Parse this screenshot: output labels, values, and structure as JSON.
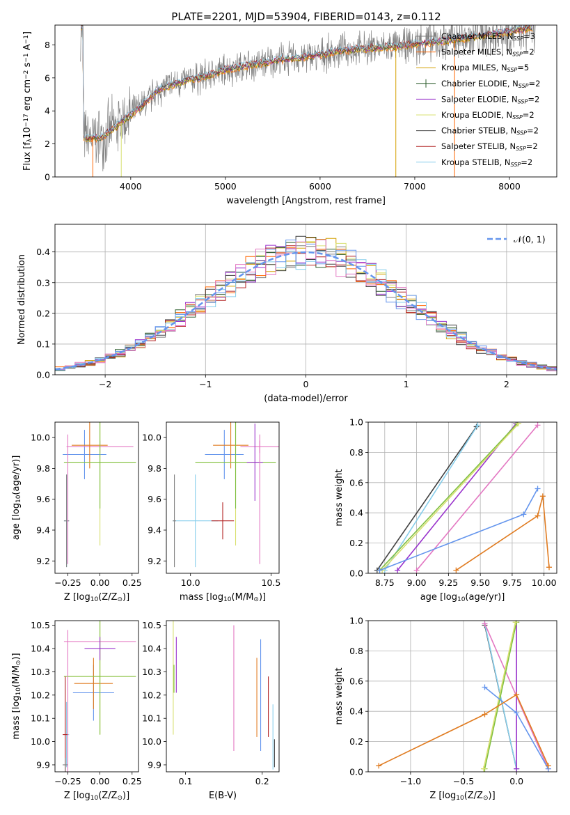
{
  "figure_title": "PLATE=2201, MJD=53904, FIBERID=0143, z=0.112",
  "chart_data": [
    {
      "id": "spectrum",
      "type": "line",
      "xlabel": "wavelength [Angstrom, rest frame]",
      "ylabel": "Flux [f",
      "ylabel_sub": "λ",
      "ylabel_rest": "10",
      "ylabel_exp1": "−17",
      "ylabel_mid": " erg cm",
      "ylabel_exp2": "−2",
      "ylabel_mid2": " s",
      "ylabel_exp3": "−1",
      "ylabel_end": " A",
      "ylabel_exp4": "−1",
      "ylabel_close": "]",
      "xlim": [
        3200,
        8500
      ],
      "ylim": [
        0,
        9.2
      ],
      "xticks": [
        4000,
        5000,
        6000,
        7000,
        8000
      ],
      "yticks": [
        0,
        2,
        4,
        6,
        8
      ],
      "legend_position": "right",
      "data_color": "#808080",
      "model_trend": [
        [
          3500,
          2.3
        ],
        [
          3700,
          2.4
        ],
        [
          3900,
          3.3
        ],
        [
          4100,
          4.2
        ],
        [
          4300,
          5.3
        ],
        [
          4500,
          5.7
        ],
        [
          4800,
          6.1
        ],
        [
          5000,
          6.5
        ],
        [
          5300,
          6.8
        ],
        [
          5600,
          7.1
        ],
        [
          5900,
          7.3
        ],
        [
          6200,
          7.6
        ],
        [
          6500,
          7.8
        ],
        [
          6800,
          7.9
        ],
        [
          7100,
          8.1
        ],
        [
          7400,
          8.3
        ],
        [
          7800,
          8.6
        ],
        [
          8100,
          8.9
        ],
        [
          8300,
          9.1
        ]
      ],
      "legend": [
        {
          "pre": "Chabrier MILES, N",
          "sub": "SSP",
          "post": "=3",
          "color": "#808080"
        },
        {
          "pre": "Salpeter MILES, N",
          "sub": "SSP",
          "post": "=2",
          "color": "#ff6600"
        },
        {
          "pre": "Kroupa MILES, N",
          "sub": "SSP",
          "post": "=5",
          "color": "#d4a000"
        },
        {
          "pre": "Chabrier ELODIE, N",
          "sub": "SSP",
          "post": "=2",
          "color": "#2e5e2e"
        },
        {
          "pre": "Salpeter ELODIE, N",
          "sub": "SSP",
          "post": "=2",
          "color": "#9932cc"
        },
        {
          "pre": "Kroupa ELODIE, N",
          "sub": "SSP",
          "post": "=2",
          "color": "#d8e070"
        },
        {
          "pre": "Chabrier STELIB, N",
          "sub": "SSP",
          "post": "=2",
          "color": "#404040"
        },
        {
          "pre": "Salpeter STELIB, N",
          "sub": "SSP",
          "post": "=2",
          "color": "#b22222"
        },
        {
          "pre": "Kroupa STELIB, N",
          "sub": "SSP",
          "post": "=2",
          "color": "#87ceeb"
        }
      ]
    },
    {
      "id": "residuals",
      "type": "line",
      "xlabel": "(data-model)/error",
      "ylabel": "Normed distribution",
      "xlim": [
        -2.5,
        2.5
      ],
      "ylim": [
        0,
        0.49
      ],
      "xticks": [
        -2,
        -1,
        0,
        1,
        2
      ],
      "yticks": [
        0.0,
        0.1,
        0.2,
        0.3,
        0.4
      ],
      "grid": true,
      "legend_position": "top-right",
      "legend_label": "𝒩(0, 1)",
      "gaussian_color": "#6495ed"
    },
    {
      "id": "age_vs_Z",
      "type": "scatter",
      "xlabel": "Z [log",
      "xlabel_sub": "10",
      "xlabel_end": "(Z/Z",
      "xlabel_sub2": "⊙",
      "xlabel_close": ")]",
      "ylabel": "age  [log",
      "ylabel_sub": "10",
      "ylabel_end": "(age/yr)]",
      "xlim": [
        -0.35,
        0.3
      ],
      "ylim": [
        9.12,
        10.1
      ],
      "xticks": [
        -0.25,
        0.0,
        0.25
      ],
      "yticks": [
        9.2,
        9.4,
        9.6,
        9.8,
        10.0
      ],
      "points": [
        {
          "x": -0.12,
          "y": 9.89,
          "xerr": 0.17,
          "yerr": 0.16,
          "color": "#6495ed"
        },
        {
          "x": 0.0,
          "y": 9.94,
          "xerr": 0.26,
          "yerr": 0.04,
          "color": "#e377c2"
        },
        {
          "x": -0.08,
          "y": 9.95,
          "xerr": 0.14,
          "yerr": 0.15,
          "color": "#e07b20"
        },
        {
          "x": 0.0,
          "y": 9.84,
          "xerr": 0.28,
          "yerr": 0.54,
          "color": "#d8e070"
        },
        {
          "x": 0.0,
          "y": 9.84,
          "xerr": 0.28,
          "yerr": 0.3,
          "color": "#80c040"
        },
        {
          "x": -0.26,
          "y": 9.46,
          "xerr": 0.02,
          "yerr": 0.3,
          "color": "#87ceeb"
        },
        {
          "x": -0.26,
          "y": 9.46,
          "xerr": 0.02,
          "yerr": 0.3,
          "color": "#808080"
        },
        {
          "x": -0.25,
          "y": 9.6,
          "xerr": 0.0,
          "yerr": 0.42,
          "color": "#e377c2"
        }
      ]
    },
    {
      "id": "age_vs_mass",
      "type": "scatter",
      "xlabel": "mass [log",
      "xlabel_sub": "10",
      "xlabel_end": "(M/M",
      "xlabel_sub2": "⊙",
      "xlabel_close": ")]",
      "xlim": [
        9.85,
        10.55
      ],
      "ylim": [
        9.12,
        10.1
      ],
      "xticks": [
        10.0,
        10.5
      ],
      "yticks": [
        9.2,
        9.4,
        9.6,
        9.8,
        10.0
      ],
      "points": [
        {
          "x": 10.21,
          "y": 9.89,
          "xerr": 0.12,
          "yerr": 0.16,
          "color": "#6495ed"
        },
        {
          "x": 10.43,
          "y": 9.94,
          "xerr": 0.12,
          "yerr": 0.04,
          "color": "#e377c2"
        },
        {
          "x": 10.25,
          "y": 9.95,
          "xerr": 0.11,
          "yerr": 0.15,
          "color": "#e07b20"
        },
        {
          "x": 10.28,
          "y": 9.84,
          "xerr": 0.25,
          "yerr": 0.54,
          "color": "#d8e070"
        },
        {
          "x": 10.28,
          "y": 9.84,
          "xerr": 0.25,
          "yerr": 0.3,
          "color": "#80c040"
        },
        {
          "x": 10.4,
          "y": 9.84,
          "xerr": 0.05,
          "yerr": 0.25,
          "color": "#9932cc"
        },
        {
          "x": 10.03,
          "y": 9.46,
          "xerr": 0.14,
          "yerr": 0.3,
          "color": "#87ceeb"
        },
        {
          "x": 10.2,
          "y": 9.46,
          "xerr": 0.07,
          "yerr": 0.12,
          "color": "#b22222"
        },
        {
          "x": 9.9,
          "y": 9.46,
          "xerr": 0.01,
          "yerr": 0.3,
          "color": "#808080"
        },
        {
          "x": 10.43,
          "y": 9.6,
          "xerr": 0.0,
          "yerr": 0.42,
          "color": "#e377c2"
        }
      ]
    },
    {
      "id": "weight_vs_age",
      "type": "line",
      "xlabel": "age  [log",
      "xlabel_sub": "10",
      "xlabel_end": "(age/yr)]",
      "ylabel": "mass weight",
      "xlim": [
        8.62,
        10.1
      ],
      "ylim": [
        0,
        1
      ],
      "xticks": [
        8.75,
        9.0,
        9.25,
        9.5,
        9.75,
        10.0
      ],
      "yticks": [
        0.0,
        0.2,
        0.4,
        0.6,
        0.8,
        1.0
      ],
      "grid": true,
      "series": [
        {
          "color": "#404040",
          "points": [
            [
              8.69,
              0.02
            ],
            [
              9.47,
              0.97
            ]
          ]
        },
        {
          "color": "#87ceeb",
          "points": [
            [
              8.75,
              0.02
            ],
            [
              9.48,
              0.98
            ]
          ]
        },
        {
          "color": "#9932cc",
          "points": [
            [
              8.85,
              0.02
            ],
            [
              9.78,
              0.99
            ]
          ]
        },
        {
          "color": "#80c040",
          "points": [
            [
              8.71,
              0.02
            ],
            [
              9.79,
              0.99
            ]
          ]
        },
        {
          "color": "#d8e070",
          "points": [
            [
              8.73,
              0.02
            ],
            [
              9.8,
              0.99
            ]
          ]
        },
        {
          "color": "#e377c2",
          "points": [
            [
              9.0,
              0.02
            ],
            [
              9.95,
              0.98
            ]
          ]
        },
        {
          "color": "#6495ed",
          "points": [
            [
              8.71,
              0.02
            ],
            [
              9.84,
              0.39
            ],
            [
              9.95,
              0.56
            ]
          ]
        },
        {
          "color": "#e07b20",
          "points": [
            [
              9.31,
              0.02
            ],
            [
              9.95,
              0.38
            ],
            [
              9.99,
              0.51
            ],
            [
              10.04,
              0.04
            ]
          ]
        }
      ]
    },
    {
      "id": "mass_vs_Z",
      "type": "scatter",
      "xlabel": "Z [log",
      "xlabel_sub": "10",
      "xlabel_end": "(Z/Z",
      "xlabel_sub2": "⊙",
      "xlabel_close": ")]",
      "ylabel": "mass [log",
      "ylabel_sub": "10",
      "ylabel_end": "(M/M",
      "ylabel_sub2": "⊙",
      "ylabel_close": ")]",
      "xlim": [
        -0.35,
        0.3
      ],
      "ylim": [
        9.87,
        10.52
      ],
      "xticks": [
        -0.25,
        0.0,
        0.25
      ],
      "yticks": [
        9.9,
        10.0,
        10.1,
        10.2,
        10.3,
        10.4,
        10.5
      ],
      "points": [
        {
          "x": -0.05,
          "y": 10.21,
          "xerr": 0.16,
          "yerr": 0.12,
          "color": "#6495ed"
        },
        {
          "x": 0.0,
          "y": 10.43,
          "xerr": 0.28,
          "yerr": 0.0,
          "color": "#e377c2"
        },
        {
          "x": -0.05,
          "y": 10.25,
          "xerr": 0.15,
          "yerr": 0.11,
          "color": "#e07b20"
        },
        {
          "x": 0.0,
          "y": 10.28,
          "xerr": 0.28,
          "yerr": 0.25,
          "color": "#d8e070"
        },
        {
          "x": 0.0,
          "y": 10.28,
          "xerr": 0.28,
          "yerr": 0.25,
          "color": "#80c040"
        },
        {
          "x": 0.0,
          "y": 10.4,
          "xerr": 0.12,
          "yerr": 0.05,
          "color": "#9932cc"
        },
        {
          "x": -0.26,
          "y": 10.03,
          "xerr": 0.02,
          "yerr": 0.14,
          "color": "#87ceeb"
        },
        {
          "x": -0.27,
          "y": 10.03,
          "xerr": 0.02,
          "yerr": 0.25,
          "color": "#b22222"
        },
        {
          "x": -0.27,
          "y": 9.9,
          "xerr": 0.02,
          "yerr": 0.03,
          "color": "#808080"
        },
        {
          "x": -0.25,
          "y": 10.1,
          "xerr": 0.0,
          "yerr": 0.38,
          "color": "#e377c2"
        }
      ]
    },
    {
      "id": "mass_vs_EBV",
      "type": "scatter",
      "xlabel": "E(B-V)",
      "xlim": [
        0.075,
        0.222
      ],
      "ylim": [
        9.87,
        10.52
      ],
      "xticks": [
        0.1,
        0.2
      ],
      "yticks": [
        9.9,
        10.0,
        10.1,
        10.2,
        10.3,
        10.4,
        10.5
      ],
      "points": [
        {
          "x": 0.088,
          "y": 10.33,
          "xerr": 0.0,
          "yerr": 0.12,
          "color": "#9932cc"
        },
        {
          "x": 0.084,
          "y": 10.28,
          "xerr": 0.0,
          "yerr": 0.25,
          "color": "#d8e070"
        },
        {
          "x": 0.085,
          "y": 10.27,
          "xerr": 0.0,
          "yerr": 0.06,
          "color": "#80c040"
        },
        {
          "x": 0.163,
          "y": 10.23,
          "xerr": 0.0,
          "yerr": 0.27,
          "color": "#e377c2"
        },
        {
          "x": 0.193,
          "y": 10.19,
          "xerr": 0.0,
          "yerr": 0.17,
          "color": "#e07b20"
        },
        {
          "x": 0.198,
          "y": 10.2,
          "xerr": 0.0,
          "yerr": 0.24,
          "color": "#6495ed"
        },
        {
          "x": 0.208,
          "y": 10.15,
          "xerr": 0.0,
          "yerr": 0.13,
          "color": "#b22222"
        },
        {
          "x": 0.214,
          "y": 10.02,
          "xerr": 0.0,
          "yerr": 0.14,
          "color": "#87ceeb"
        },
        {
          "x": 0.216,
          "y": 9.95,
          "xerr": 0.0,
          "yerr": 0.06,
          "color": "#404040"
        }
      ]
    },
    {
      "id": "weight_vs_Z",
      "type": "line",
      "xlabel": "Z [log",
      "xlabel_sub": "10",
      "xlabel_end": "(Z/Z",
      "xlabel_sub2": "⊙",
      "xlabel_close": ")]",
      "ylabel": "mass weight",
      "xlim": [
        -1.4,
        0.38
      ],
      "ylim": [
        0,
        1
      ],
      "xticks": [
        -1.0,
        -0.5,
        0.0
      ],
      "yticks": [
        0.0,
        0.2,
        0.4,
        0.6,
        0.8,
        1.0
      ],
      "grid": true,
      "series": [
        {
          "color": "#404040",
          "points": [
            [
              -0.3,
              0.97
            ],
            [
              0.0,
              0.02
            ]
          ]
        },
        {
          "color": "#87ceeb",
          "points": [
            [
              -0.3,
              0.98
            ],
            [
              0.0,
              0.02
            ]
          ]
        },
        {
          "color": "#e377c2",
          "points": [
            [
              -0.3,
              0.98
            ],
            [
              0.3,
              0.02
            ]
          ]
        },
        {
          "color": "#9932cc",
          "points": [
            [
              0.0,
              0.99
            ],
            [
              0.0,
              0.02
            ]
          ]
        },
        {
          "color": "#80c040",
          "points": [
            [
              -0.3,
              0.02
            ],
            [
              0.0,
              0.99
            ]
          ]
        },
        {
          "color": "#d8e070",
          "points": [
            [
              -0.31,
              0.02
            ],
            [
              -0.01,
              0.99
            ]
          ]
        },
        {
          "color": "#6495ed",
          "points": [
            [
              -0.3,
              0.56
            ],
            [
              0.0,
              0.39
            ],
            [
              0.3,
              0.02
            ]
          ]
        },
        {
          "color": "#e07b20",
          "points": [
            [
              -1.3,
              0.04
            ],
            [
              -0.3,
              0.38
            ],
            [
              0.0,
              0.51
            ],
            [
              0.3,
              0.04
            ]
          ]
        }
      ]
    }
  ]
}
